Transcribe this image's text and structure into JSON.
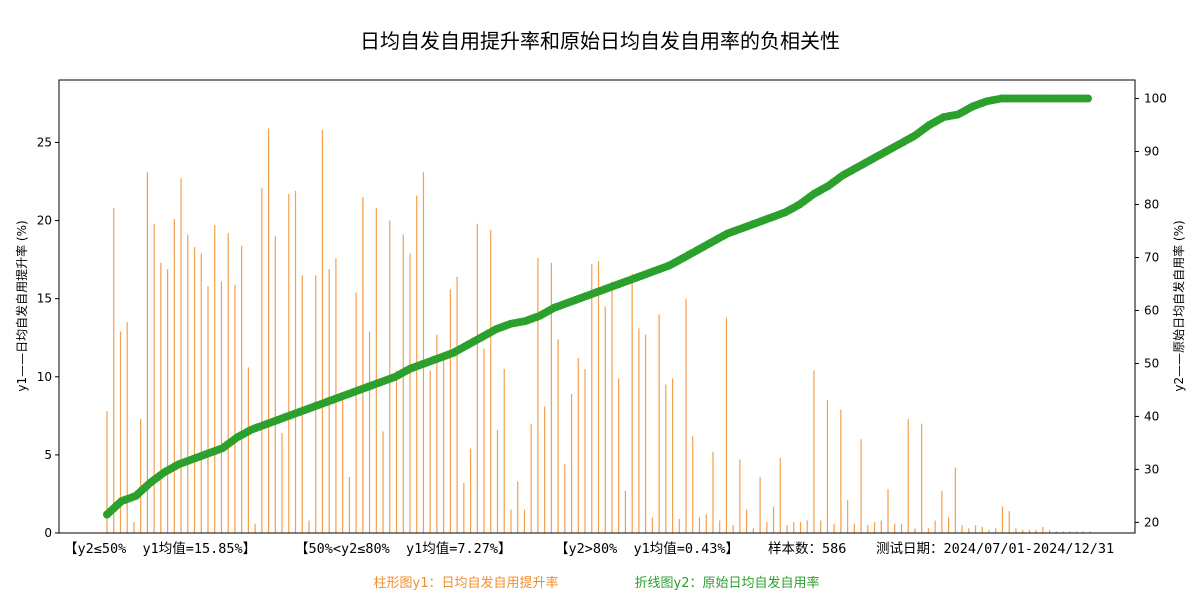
{
  "chart_data": {
    "type": "bar+line",
    "title": "日均自发自用提升率和原始日均自发自用率的负相关性",
    "ylabel_left": "y1——日均自发自用提升率 (%)",
    "ylabel_right": "y2——原始日均自发自用率 (%)",
    "y1_ticks": [
      "0",
      "5",
      "10",
      "15",
      "20",
      "25"
    ],
    "y2_ticks": [
      "20",
      "30",
      "40",
      "50",
      "60",
      "70",
      "80",
      "90",
      "100"
    ],
    "y1_lim": [
      0,
      29
    ],
    "y2_lim": [
      18,
      103.5
    ],
    "grid": false,
    "colors": {
      "bar": "#f28e2b",
      "line": "#2ca02c"
    },
    "series": [
      {
        "name": "柱形图y1：日均自发自用提升率",
        "kind": "bar",
        "values": [
          7.8,
          20.8,
          12.9,
          13.5,
          0.7,
          7.3,
          23.1,
          19.8,
          17.3,
          16.9,
          20.1,
          22.7,
          19.1,
          18.3,
          17.9,
          15.8,
          19.7,
          16.1,
          19.2,
          15.9,
          18.4,
          10.6,
          0.6,
          22.1,
          25.9,
          19.0,
          6.4,
          21.7,
          21.9,
          16.5,
          0.8,
          16.5,
          25.8,
          16.9,
          17.6,
          8.7,
          3.6,
          15.4,
          21.5,
          12.9,
          20.8,
          6.5,
          20.0,
          10.4,
          19.1,
          17.9,
          21.6,
          23.1,
          10.4,
          12.7,
          11.1,
          15.6,
          16.4,
          3.2,
          5.4,
          19.8,
          11.8,
          19.4,
          6.6,
          10.5,
          1.5,
          3.3,
          1.5,
          7.0,
          17.6,
          8.1,
          17.3,
          12.4,
          4.4,
          8.9,
          11.2,
          10.5,
          17.2,
          17.4,
          14.5,
          16.1,
          9.9,
          2.7,
          16.6,
          13.1,
          12.7,
          1.0,
          14.0,
          9.5,
          9.9,
          0.9,
          15.0,
          6.2,
          1.0,
          1.2,
          5.2,
          0.8,
          13.8,
          0.5,
          4.7,
          1.5,
          0.3,
          3.6,
          0.7,
          1.7,
          4.8,
          0.5,
          0.7,
          0.7,
          0.8,
          10.4,
          0.8,
          8.5,
          0.6,
          7.9,
          2.1,
          0.6,
          6.0,
          0.5,
          0.7,
          0.8,
          2.8,
          0.6,
          0.6,
          7.3,
          0.3,
          7.0,
          0.3,
          0.8,
          2.7,
          1.0,
          4.2,
          0.5,
          0.3,
          0.5,
          0.4,
          0.2,
          0.3,
          1.7,
          1.4,
          0.3,
          0.2,
          0.2,
          0.2,
          0.4,
          0.2,
          0.1,
          0.1,
          0.1,
          0.1,
          0.1,
          0.1
        ]
      },
      {
        "name": "折线图y2：原始日均自发自用率",
        "kind": "line",
        "values": [
          21.5,
          24.0,
          25.0,
          27.5,
          29.5,
          31.0,
          32.0,
          33.0,
          34.0,
          36.0,
          37.5,
          38.5,
          39.5,
          40.5,
          41.5,
          42.5,
          43.5,
          44.5,
          45.5,
          46.5,
          47.5,
          49.0,
          50.0,
          51.0,
          52.0,
          53.5,
          55.0,
          56.5,
          57.5,
          58.0,
          59.0,
          60.5,
          61.5,
          62.5,
          63.5,
          64.5,
          65.5,
          66.5,
          67.5,
          68.5,
          70.0,
          71.5,
          73.0,
          74.5,
          75.5,
          76.5,
          77.5,
          78.5,
          80.0,
          82.0,
          83.5,
          85.5,
          87.0,
          88.5,
          90.0,
          91.5,
          93.0,
          95.0,
          96.5,
          97.0,
          98.5,
          99.5,
          100.0,
          100.0,
          100.0,
          100.0,
          100.0,
          100.0,
          100.0
        ]
      }
    ],
    "summary": {
      "group1": "【y2≤50%  y1均值=15.85%】",
      "group2": "【50%<y2≤80%  y1均值=7.27%】",
      "group3": "【y2>80%  y1均值=0.43%】",
      "sample_count": "样本数：586",
      "test_date": "测试日期：2024/07/01-2024/12/31"
    },
    "legend": {
      "bar_label": "柱形图y1：日均自发自用提升率",
      "line_label": "折线图y2：原始日均自发自用率"
    }
  }
}
